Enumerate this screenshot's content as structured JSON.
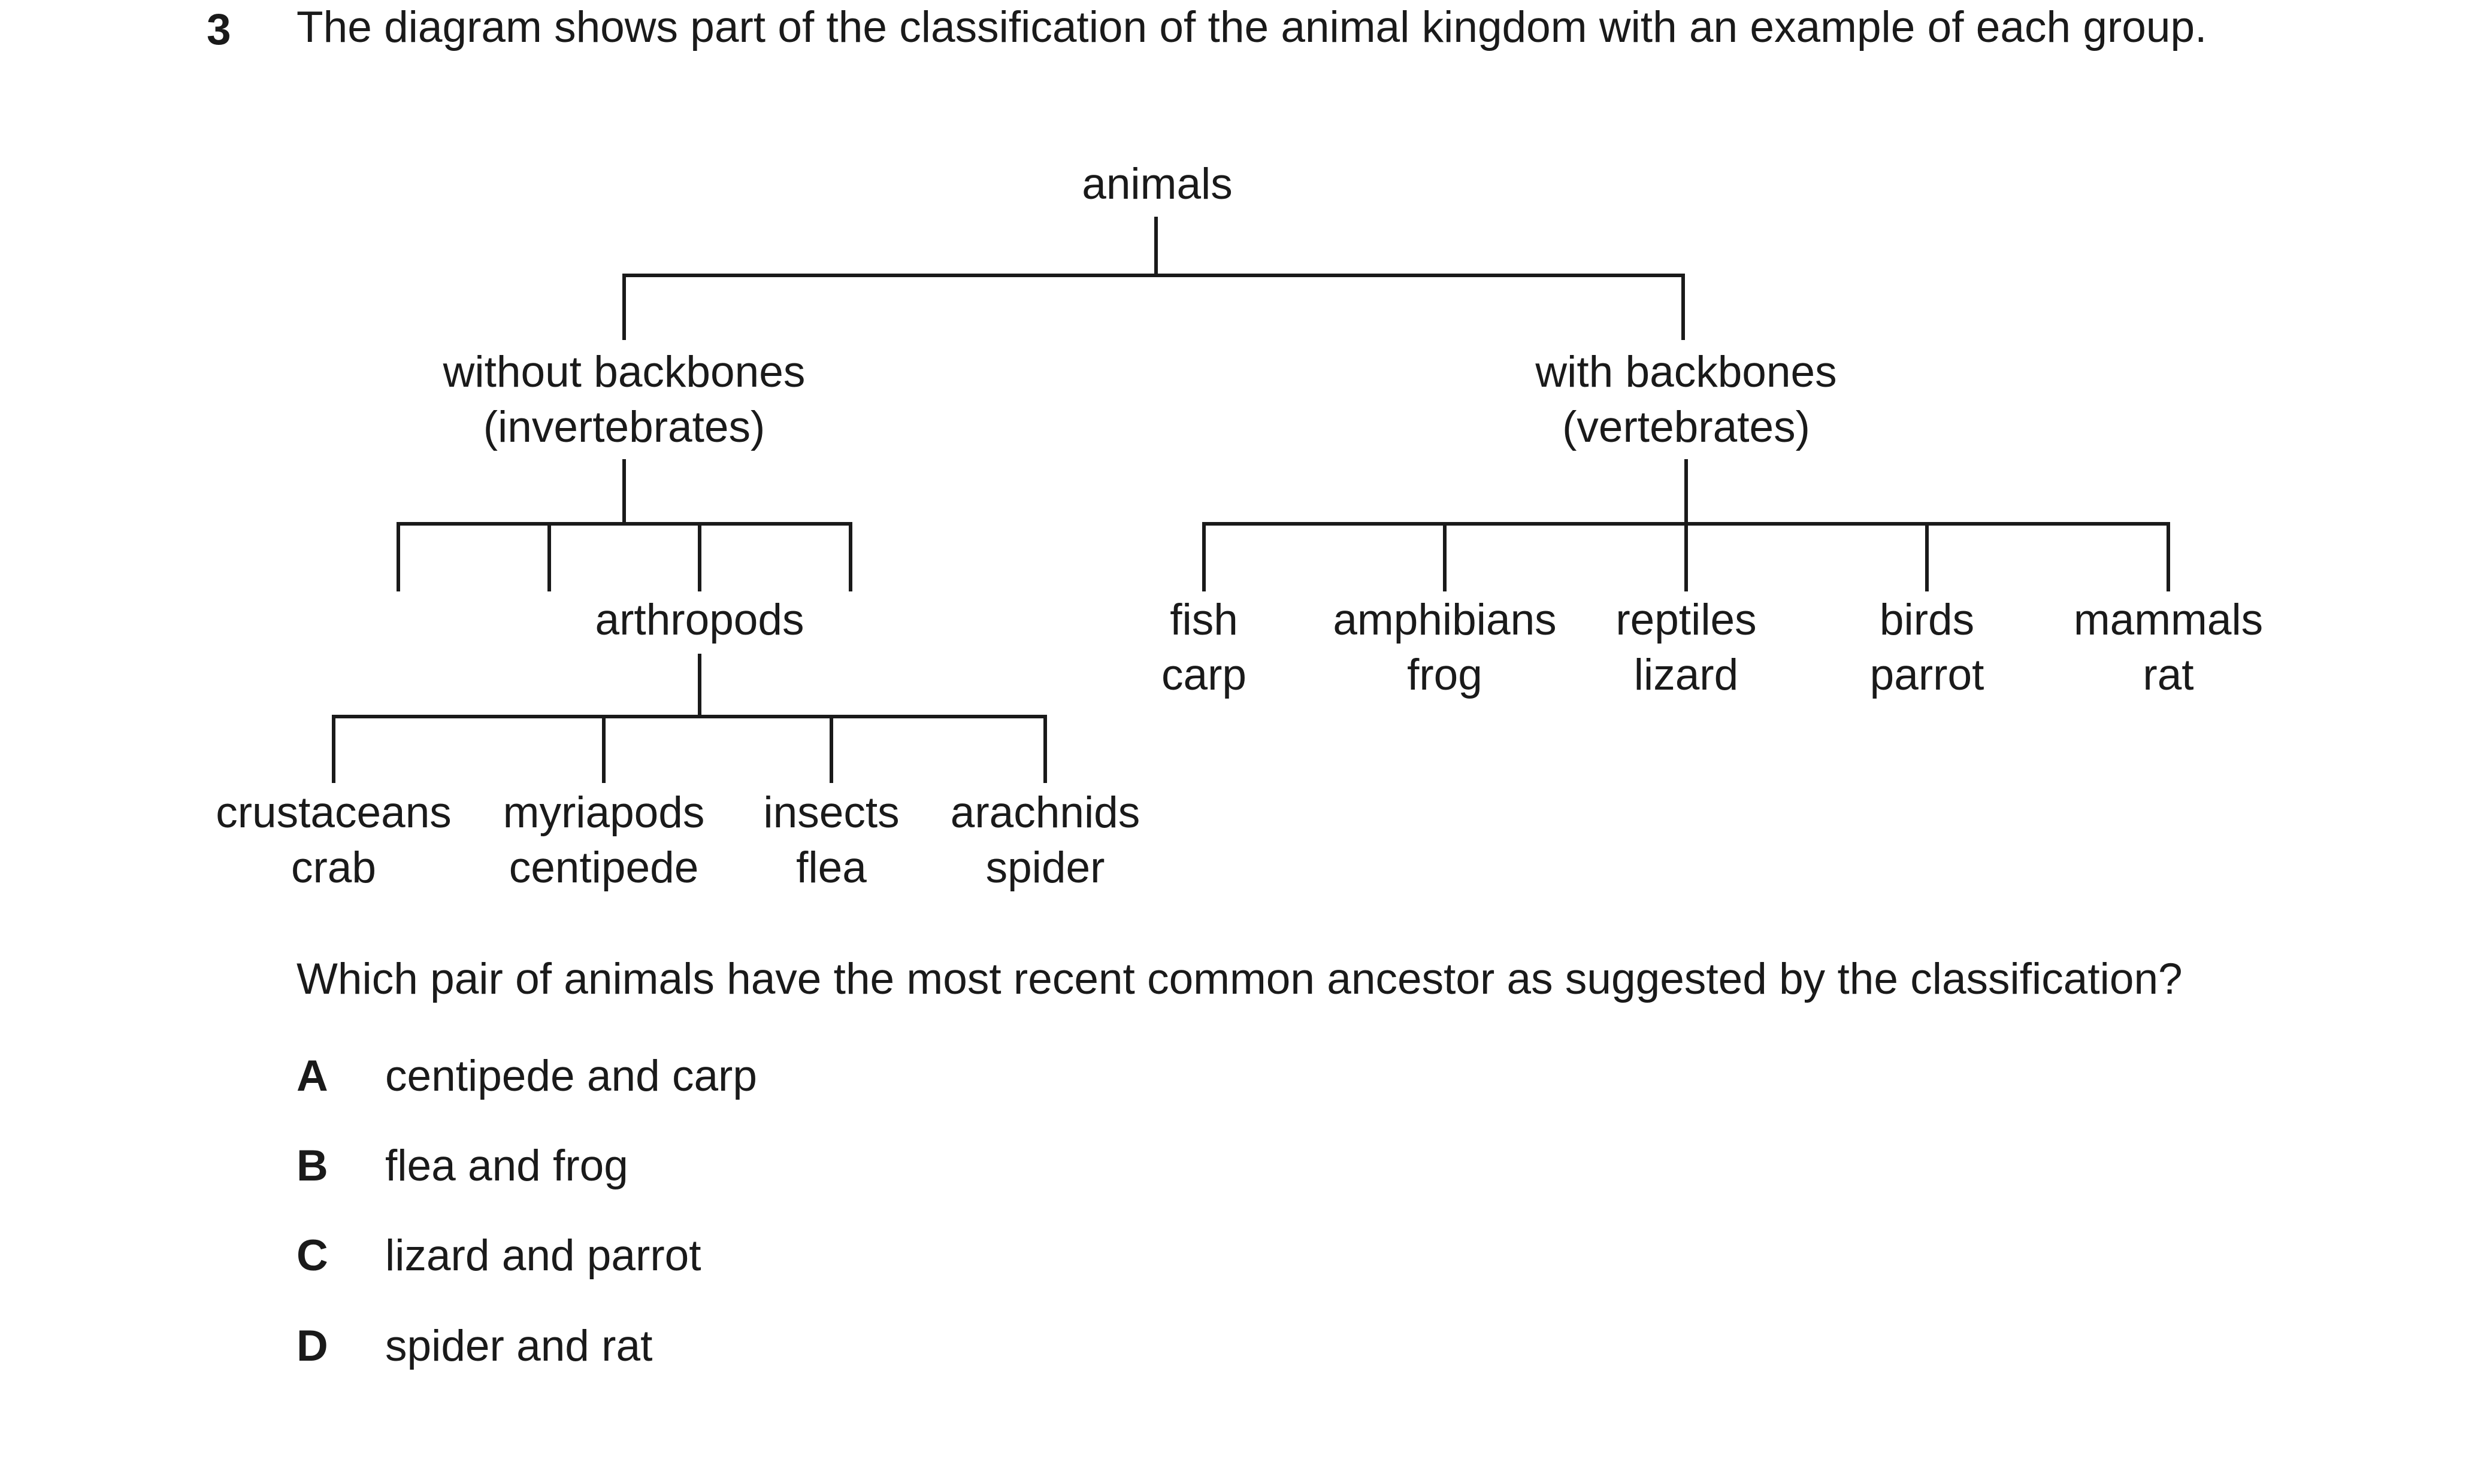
{
  "question": {
    "number": "3",
    "stem": "The diagram shows part of the classification of the animal kingdom with an example of each group.",
    "prompt": "Which pair of animals have the most recent common ancestor as suggested by the classification?",
    "options": [
      {
        "letter": "A",
        "text": "centipede and carp"
      },
      {
        "letter": "B",
        "text": "flea and frog"
      },
      {
        "letter": "C",
        "text": "lizard and parrot"
      },
      {
        "letter": "D",
        "text": "spider and rat"
      }
    ]
  },
  "diagram": {
    "root": "animals",
    "invertebrates": {
      "line1": "without backbones",
      "line2": "(invertebrates)"
    },
    "vertebrates": {
      "line1": "with backbones",
      "line2": "(vertebrates)"
    },
    "arthropods": "arthropods",
    "arthropod_groups": [
      {
        "group": "crustaceans",
        "example": "crab"
      },
      {
        "group": "myriapods",
        "example": "centipede"
      },
      {
        "group": "insects",
        "example": "flea"
      },
      {
        "group": "arachnids",
        "example": "spider"
      }
    ],
    "vertebrate_groups": [
      {
        "group": "fish",
        "example": "carp"
      },
      {
        "group": "amphibians",
        "example": "frog"
      },
      {
        "group": "reptiles",
        "example": "lizard"
      },
      {
        "group": "birds",
        "example": "parrot"
      },
      {
        "group": "mammals",
        "example": "rat"
      }
    ]
  }
}
